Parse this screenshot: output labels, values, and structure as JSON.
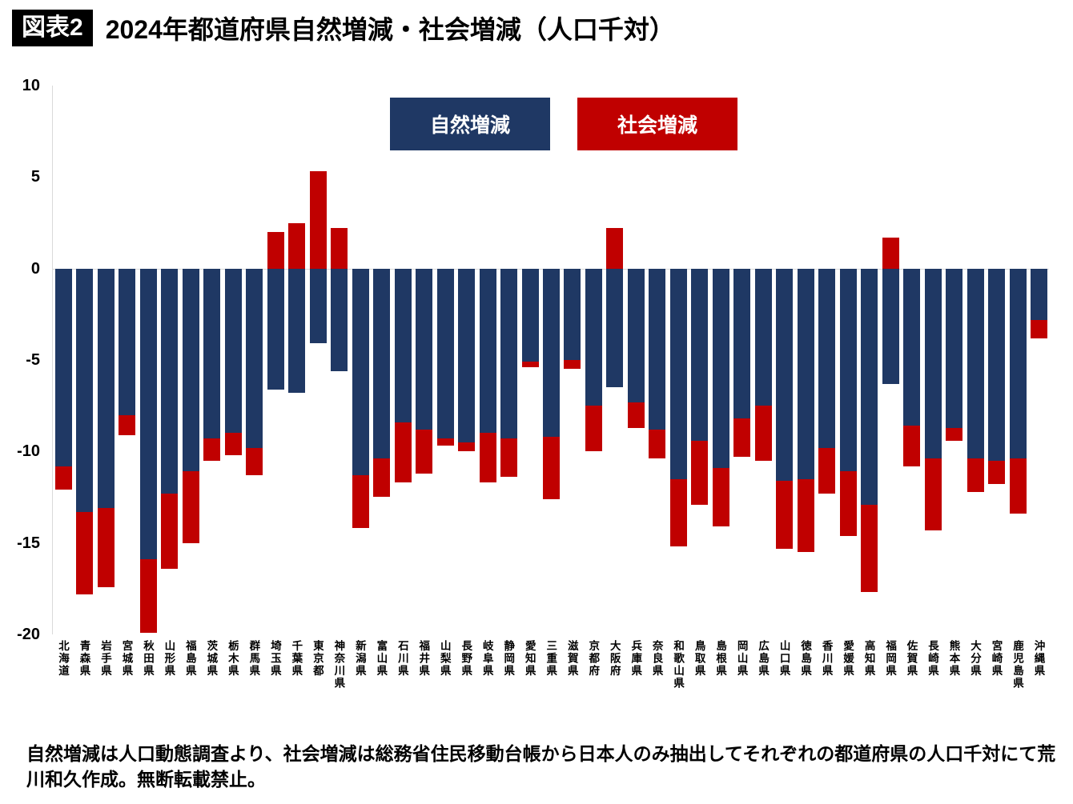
{
  "header": {
    "badge": "図表2",
    "title": "2024年都道府県自然増減・社会増減（人口千対）"
  },
  "legend": {
    "natural": "自然増減",
    "social": "社会増減"
  },
  "colors": {
    "natural": "#1f3864",
    "social": "#c00000",
    "background": "#ffffff"
  },
  "chart_data": {
    "type": "bar",
    "stacked": true,
    "title": "2024年都道府県自然増減・社会増減（人口千対）",
    "xlabel": "",
    "ylabel": "",
    "ylim": [
      -20,
      10
    ],
    "yticks": [
      10,
      5,
      0,
      -5,
      -10,
      -15,
      -20
    ],
    "grid": false,
    "legend_position": "top-center",
    "categories": [
      "北海道",
      "青森県",
      "岩手県",
      "宮城県",
      "秋田県",
      "山形県",
      "福島県",
      "茨城県",
      "栃木県",
      "群馬県",
      "埼玉県",
      "千葉県",
      "東京都",
      "神奈川県",
      "新潟県",
      "富山県",
      "石川県",
      "福井県",
      "山梨県",
      "長野県",
      "岐阜県",
      "静岡県",
      "愛知県",
      "三重県",
      "滋賀県",
      "京都府",
      "大阪府",
      "兵庫県",
      "奈良県",
      "和歌山県",
      "鳥取県",
      "島根県",
      "岡山県",
      "広島県",
      "山口県",
      "徳島県",
      "香川県",
      "愛媛県",
      "高知県",
      "福岡県",
      "佐賀県",
      "長崎県",
      "熊本県",
      "大分県",
      "宮崎県",
      "鹿児島県",
      "沖縄県"
    ],
    "series": [
      {
        "name": "自然増減",
        "color": "#1f3864",
        "values": [
          -10.8,
          -13.3,
          -13.1,
          -8.0,
          -15.9,
          -12.3,
          -11.1,
          -9.3,
          -9.0,
          -9.8,
          -6.6,
          -6.8,
          -4.1,
          -5.6,
          -11.3,
          -10.4,
          -8.4,
          -8.8,
          -9.3,
          -9.5,
          -9.0,
          -9.3,
          -5.1,
          -9.2,
          -5.0,
          -7.5,
          -6.5,
          -7.3,
          -8.8,
          -11.5,
          -9.4,
          -10.9,
          -8.2,
          -7.5,
          -11.6,
          -11.5,
          -9.8,
          -11.1,
          -12.9,
          -6.3,
          -8.6,
          -10.4,
          -8.7,
          -10.4,
          -10.5,
          -10.4,
          -2.8
        ]
      },
      {
        "name": "社会増減",
        "color": "#c00000",
        "values": [
          -1.3,
          -4.5,
          -4.3,
          -1.1,
          -4.0,
          -4.1,
          -3.9,
          -1.2,
          -1.2,
          -1.5,
          2.0,
          2.5,
          5.3,
          2.2,
          -2.9,
          -2.1,
          -3.3,
          -2.4,
          -0.4,
          -0.5,
          -2.7,
          -2.1,
          -0.3,
          -3.4,
          -0.5,
          -2.5,
          2.2,
          -1.4,
          -1.6,
          -3.7,
          -3.5,
          -3.2,
          -2.1,
          -3.0,
          -3.7,
          -4.0,
          -2.5,
          -3.5,
          -4.8,
          1.7,
          -2.2,
          -3.9,
          -0.7,
          -1.8,
          -1.3,
          -3.0,
          -1.0
        ]
      }
    ]
  },
  "footer": {
    "note": "自然増減は人口動態調査より、社会増減は総務省住民移動台帳から日本人のみ抽出してそれぞれの都道府県の人口千対にて荒川和久作成。無断転載禁止。"
  }
}
